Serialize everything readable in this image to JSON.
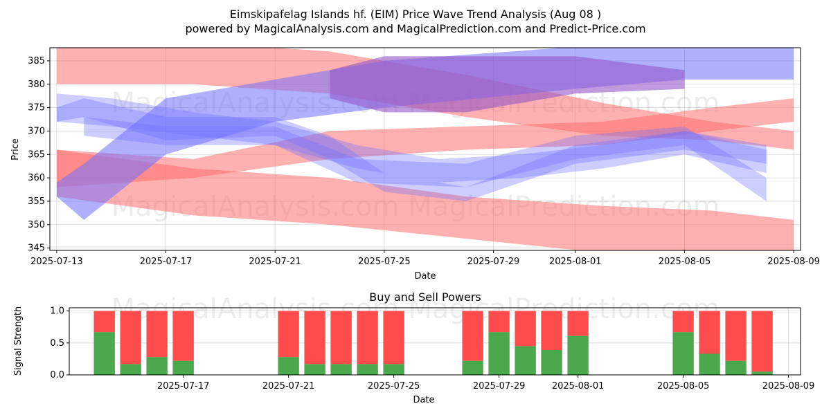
{
  "chart_data": [
    {
      "type": "area",
      "title_line1": "Eimskipafelag Islands hf. (EIM) Price Wave Trend Analysis (Aug 08 )",
      "title_line2": "powered by MagicalAnalysis.com and MagicalPrediction.com and Predict-Price.com",
      "xlabel": "Date",
      "ylabel": "Price",
      "xlim": [
        "2025-07-12T18:00",
        "2025-08-09T06:00"
      ],
      "ylim": [
        344.5,
        387.8
      ],
      "yticks": [
        345,
        350,
        355,
        360,
        365,
        370,
        375,
        380,
        385
      ],
      "xticks": [
        "2025-07-13",
        "2025-07-17",
        "2025-07-21",
        "2025-07-25",
        "2025-07-29",
        "2025-08-01",
        "2025-08-05",
        "2025-08-09"
      ],
      "watermark": "MagicalAnalysis.com    MagicalPrediction.com",
      "colors": {
        "red_band": "#ff6f6f",
        "blue_band": "#6f6fff",
        "purple": "#9457c8"
      },
      "red_bands": [
        {
          "x": [
            "2025-07-13",
            "2025-07-18",
            "2025-07-23",
            "2025-07-28",
            "2025-08-02",
            "2025-08-06",
            "2025-08-09"
          ],
          "upper": [
            389,
            389,
            387,
            382,
            376,
            372,
            370
          ],
          "lower": [
            380,
            380,
            378,
            373,
            369,
            368,
            366
          ]
        },
        {
          "x": [
            "2025-07-13",
            "2025-07-18",
            "2025-07-23",
            "2025-07-28",
            "2025-08-02",
            "2025-08-06",
            "2025-08-09"
          ],
          "upper": [
            366,
            362,
            360,
            356,
            354,
            353,
            351
          ],
          "lower": [
            356,
            352,
            350,
            347,
            344,
            343,
            342
          ]
        },
        {
          "x": [
            "2025-07-13",
            "2025-07-18",
            "2025-07-23",
            "2025-07-28",
            "2025-08-02",
            "2025-08-06",
            "2025-08-09"
          ],
          "upper": [
            366,
            364,
            370,
            371,
            372,
            375,
            377
          ],
          "lower": [
            358,
            360,
            364,
            366,
            367,
            370,
            372
          ]
        }
      ],
      "blue_bands": [
        {
          "x": [
            "2025-07-13",
            "2025-07-14",
            "2025-07-17",
            "2025-07-21",
            "2025-07-25",
            "2025-08-01",
            "2025-08-05",
            "2025-08-09"
          ],
          "upper": [
            359,
            363,
            377,
            381,
            385,
            388,
            390,
            388
          ],
          "lower": [
            356,
            351,
            365,
            372,
            375,
            379,
            381,
            381
          ]
        },
        {
          "x": [
            "2025-07-13",
            "2025-07-14",
            "2025-07-17",
            "2025-07-21",
            "2025-07-23",
            "2025-07-25",
            "2025-07-28",
            "2025-08-01",
            "2025-08-05",
            "2025-08-08"
          ],
          "upper": [
            375,
            377,
            373,
            373,
            369,
            361,
            358,
            367,
            370,
            367
          ],
          "lower": [
            372,
            373,
            368,
            369,
            364,
            357,
            355,
            363,
            366,
            363
          ]
        },
        {
          "x": [
            "2025-07-13",
            "2025-07-15",
            "2025-07-18",
            "2025-07-21",
            "2025-07-24",
            "2025-07-27",
            "2025-07-30",
            "2025-08-02",
            "2025-08-05",
            "2025-08-08"
          ],
          "upper": [
            378,
            377,
            374,
            372,
            367,
            364,
            365,
            367,
            370,
            366
          ],
          "lower": [
            372,
            371,
            369,
            367,
            362,
            359,
            360,
            362,
            365,
            361
          ]
        },
        {
          "x": [
            "2025-07-14",
            "2025-07-17",
            "2025-07-21",
            "2025-07-24",
            "2025-07-28",
            "2025-08-01",
            "2025-08-05",
            "2025-08-08"
          ],
          "upper": [
            373,
            371,
            371,
            364,
            363,
            369,
            371,
            360
          ],
          "lower": [
            369,
            367,
            367,
            359,
            358,
            364,
            367,
            355
          ]
        }
      ],
      "purple_band": {
        "x": [
          "2025-07-23",
          "2025-07-25",
          "2025-07-28",
          "2025-08-01",
          "2025-08-05"
        ],
        "upper": [
          383,
          386,
          386,
          386,
          383
        ],
        "lower": [
          377,
          374,
          374,
          378,
          379
        ]
      }
    },
    {
      "type": "bar",
      "title": "Buy and Sell Powers",
      "xlabel": "Date",
      "ylabel": "Signal Strength",
      "ylim": [
        0,
        1.05
      ],
      "yticks": [
        0.0,
        0.5,
        1.0
      ],
      "ytick_labels": [
        "0.0",
        "0.5",
        "1.0"
      ],
      "xlim": [
        "2025-07-12T16:00",
        "2025-08-09T11:00"
      ],
      "xticks": [
        "2025-07-17",
        "2025-07-21",
        "2025-07-25",
        "2025-07-29",
        "2025-08-01",
        "2025-08-05",
        "2025-08-09"
      ],
      "colors": {
        "buy": "#4ca84c",
        "sell": "#ff4d4d"
      },
      "categories": [
        "2025-07-14",
        "2025-07-15",
        "2025-07-16",
        "2025-07-17",
        "2025-07-21",
        "2025-07-22",
        "2025-07-23",
        "2025-07-24",
        "2025-07-25",
        "2025-07-28",
        "2025-07-29",
        "2025-07-30",
        "2025-07-31",
        "2025-08-01",
        "2025-08-05",
        "2025-08-06",
        "2025-08-07",
        "2025-08-08"
      ],
      "series": [
        {
          "name": "Buy",
          "values": [
            0.67,
            0.17,
            0.28,
            0.22,
            0.28,
            0.17,
            0.17,
            0.17,
            0.17,
            0.22,
            0.67,
            0.45,
            0.39,
            0.61,
            0.67,
            0.33,
            0.22,
            0.05
          ]
        },
        {
          "name": "Sell",
          "values": [
            0.33,
            0.83,
            0.72,
            0.78,
            0.72,
            0.83,
            0.83,
            0.83,
            0.83,
            0.78,
            0.33,
            0.55,
            0.61,
            0.39,
            0.33,
            0.67,
            0.78,
            0.95
          ]
        }
      ]
    }
  ]
}
